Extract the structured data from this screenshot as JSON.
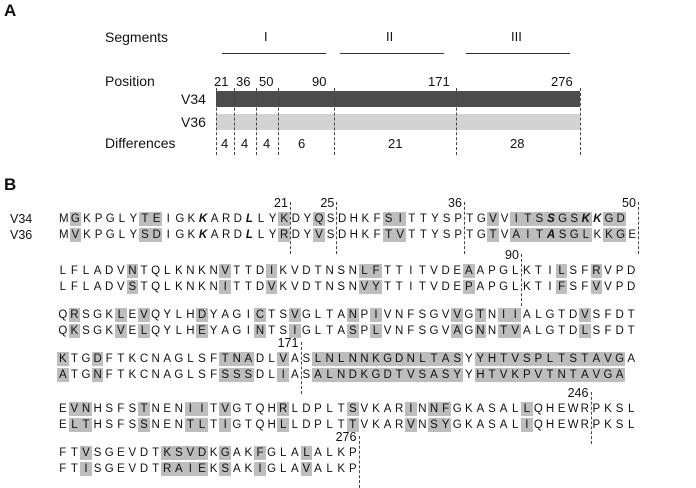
{
  "panel_a": {
    "letter": "A",
    "segments_label": "Segments",
    "segments": [
      "I",
      "II",
      "III"
    ],
    "position_label": "Position",
    "positions": [
      "21",
      "36",
      "50",
      "90",
      "171",
      "276"
    ],
    "v34_label": "V34",
    "v36_label": "V36",
    "differences_label": "Differences",
    "differences": [
      "4",
      "4",
      "4",
      "6",
      "21",
      "28"
    ],
    "colors": {
      "v34_bar": "#4d4d4d",
      "v36_bar": "#d3d3d3",
      "highlight": "#bdbdbd"
    }
  },
  "panel_b": {
    "letter": "B",
    "names": [
      "V34",
      "V36"
    ],
    "blocks": [
      {
        "top": "MGKPGLYTEIGKKARDLLYKDYQSDHKFSITTYSPTGVVITSSGSKKGD",
        "bottom": "MVKPGLYSDIGKKARDLLYRDYVSDHKFTVTTYSPTGTVAITASGLKKGE",
        "markers": [
          {
            "label": "21",
            "col": 20
          },
          {
            "label": "25",
            "col": 24
          },
          {
            "label": "36",
            "col": 35
          },
          {
            "label": "50",
            "col": 50
          }
        ]
      },
      {
        "top": "LFLADVNTQLKNKNVTTDIKVDTNSNLFTTITVDEAAPGLKTILSFRVPD",
        "bottom": "LFLADVSTQLKNKNITTDVKVDTNSNVYTTITVDEPAPGLKTIFSFVVPD",
        "markers": [
          {
            "label": "90",
            "col": 40
          }
        ]
      },
      {
        "top": "QRSGKLEVQYLHDYAGICTSVGLTANPIVNFSGVVGTNIIALGTDVSFDT",
        "bottom": "QKSGKVELQYLHEYAGINTSIGLTASPLVNFSGVAGNNTVALGTDLSFDT",
        "markers": []
      },
      {
        "top": "KTGDFTKCNAGLSFTNADLVASLNLNNKGDNLTASYYHTVSPLTSTAVGA",
        "bottom": "ATGNFTKCNAGLSFSSSDLIASALNDKGDTVSASYYHTVKPVTNTAVGA",
        "markers": [
          {
            "label": "171",
            "col": 21
          }
        ]
      },
      {
        "top": "EVNHSFSTNENIITVGTQHRLDPLTSVKARINNFGKASALLQHEWRPKSL",
        "bottom": "ELTHSFSSNENTLTIGTQHLLDPLTTVKARVNSYGKASALIQHEWRPKSL",
        "markers": [
          {
            "label": "246",
            "col": 46
          }
        ]
      },
      {
        "top": "FTVSGEVDTKSVDKGAKFGLALALKP",
        "bottom": "FTISGEVDTRAIEKSAKIGLAVALKP",
        "markers": [
          {
            "label": "276",
            "col": 26
          }
        ]
      }
    ]
  }
}
